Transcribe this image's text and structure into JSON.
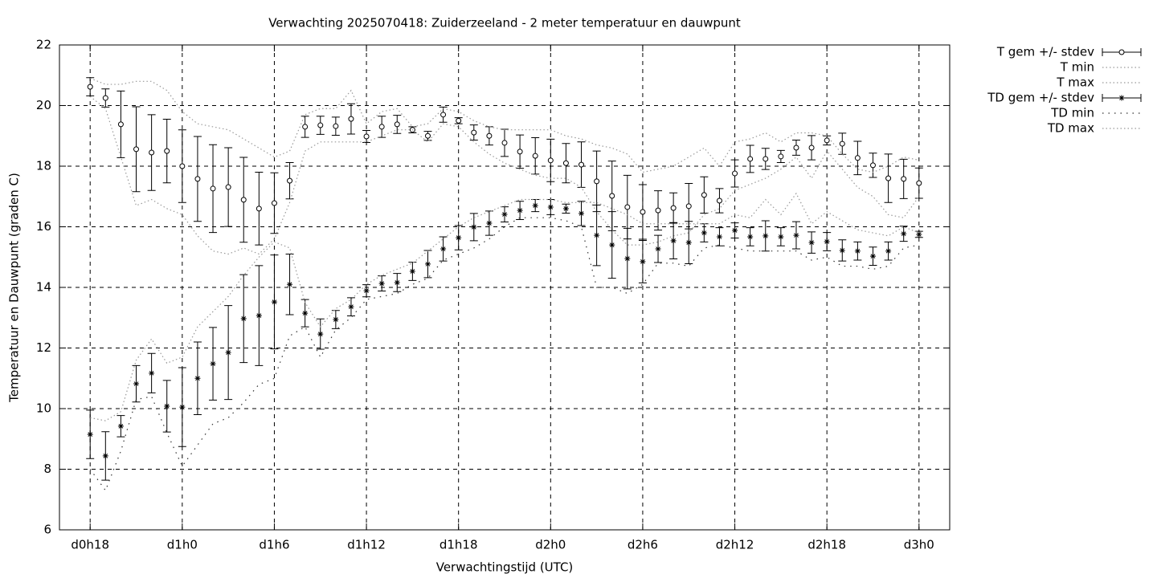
{
  "chart_data": {
    "type": "errorbar",
    "title": "Verwachting 2025070418: Zuiderzeeland - 2 meter temperatuur en dauwpunt",
    "x_label": "Verwachtingstijd (UTC)",
    "y_label": "Temperatuur en Dauwpunt (graden C)",
    "x": [
      18,
      19,
      20,
      21,
      22,
      23,
      24,
      25,
      26,
      27,
      28,
      29,
      30,
      31,
      32,
      33,
      34,
      35,
      36,
      37,
      38,
      39,
      40,
      41,
      42,
      43,
      44,
      45,
      46,
      47,
      48,
      49,
      50,
      51,
      52,
      53,
      54,
      55,
      56,
      57,
      58,
      59,
      60,
      61,
      62,
      63,
      64,
      65,
      66,
      67,
      68,
      69,
      70,
      71,
      72
    ],
    "xlim": [
      16,
      74
    ],
    "xticks": [
      {
        "value": 18,
        "label": "d0h18"
      },
      {
        "value": 24,
        "label": "d1h0"
      },
      {
        "value": 30,
        "label": "d1h6"
      },
      {
        "value": 36,
        "label": "d1h12"
      },
      {
        "value": 42,
        "label": "d1h18"
      },
      {
        "value": 48,
        "label": "d2h0"
      },
      {
        "value": 54,
        "label": "d2h6"
      },
      {
        "value": 60,
        "label": "d2h12"
      },
      {
        "value": 66,
        "label": "d2h18"
      },
      {
        "value": 72,
        "label": "d3h0"
      }
    ],
    "ylim": [
      6,
      22
    ],
    "yticks": [
      6,
      8,
      10,
      12,
      14,
      16,
      18,
      20,
      22
    ],
    "grid": true,
    "legend": "outside-right-top",
    "series": [
      {
        "name": "T gem +/- stdev",
        "color": "#000000",
        "marker": "circle",
        "values": [
          20.62,
          20.25,
          19.38,
          18.56,
          18.45,
          18.5,
          18.0,
          17.58,
          17.26,
          17.31,
          16.89,
          16.6,
          16.78,
          17.52,
          19.3,
          19.35,
          19.32,
          19.56,
          18.98,
          19.3,
          19.38,
          19.2,
          19.0,
          19.7,
          19.5,
          19.11,
          19.0,
          18.77,
          18.48,
          18.34,
          18.19,
          18.1,
          18.05,
          17.5,
          17.02,
          16.65,
          16.49,
          16.54,
          16.62,
          16.68,
          17.05,
          16.86,
          17.76,
          18.24,
          18.24,
          18.32,
          18.61,
          18.61,
          18.85,
          18.74,
          18.27,
          18.03,
          17.6,
          17.58,
          17.44
        ],
        "errors": [
          0.3,
          0.3,
          1.1,
          1.4,
          1.25,
          1.05,
          1.2,
          1.4,
          1.45,
          1.3,
          1.4,
          1.2,
          1.0,
          0.6,
          0.35,
          0.3,
          0.3,
          0.5,
          0.2,
          0.35,
          0.3,
          0.1,
          0.15,
          0.25,
          0.1,
          0.25,
          0.3,
          0.45,
          0.55,
          0.6,
          0.7,
          0.65,
          0.75,
          1.0,
          1.15,
          1.05,
          0.9,
          0.65,
          0.5,
          0.75,
          0.6,
          0.4,
          0.45,
          0.45,
          0.35,
          0.2,
          0.25,
          0.4,
          0.15,
          0.35,
          0.55,
          0.4,
          0.8,
          0.65,
          0.5
        ]
      },
      {
        "name": "T min",
        "color": "#999999",
        "line": "dotted",
        "values": [
          20.3,
          19.9,
          18.3,
          16.7,
          16.9,
          16.6,
          16.4,
          15.7,
          15.2,
          15.1,
          15.3,
          15.1,
          15.6,
          16.8,
          18.5,
          18.8,
          18.8,
          18.8,
          18.8,
          19.0,
          19.2,
          19.2,
          18.8,
          19.4,
          19.3,
          18.8,
          18.4,
          18.1,
          17.9,
          17.7,
          17.6,
          17.6,
          17.3,
          16.5,
          15.9,
          15.4,
          15.4,
          15.5,
          15.7,
          15.8,
          16.4,
          16.6,
          17.2,
          17.4,
          17.6,
          17.9,
          18.3,
          17.6,
          18.5,
          17.9,
          17.3,
          17.0,
          16.4,
          16.3,
          17.0
        ]
      },
      {
        "name": "T max",
        "color": "#999999",
        "line": "dotted",
        "values": [
          20.9,
          20.7,
          20.7,
          20.8,
          20.8,
          20.5,
          19.8,
          19.4,
          19.3,
          19.2,
          18.9,
          18.6,
          18.3,
          18.5,
          19.7,
          19.9,
          19.9,
          20.5,
          19.4,
          19.8,
          19.9,
          19.3,
          19.4,
          19.9,
          19.8,
          19.5,
          19.3,
          19.2,
          19.2,
          19.2,
          19.2,
          19.0,
          18.9,
          18.7,
          18.6,
          18.4,
          17.8,
          17.9,
          18.0,
          18.3,
          18.6,
          18.0,
          18.8,
          18.9,
          19.1,
          18.8,
          19.1,
          19.1,
          19.0,
          18.4,
          17.9,
          17.8,
          18.0,
          18.3,
          18.2
        ]
      },
      {
        "name": "TD gem +/- stdev",
        "color": "#000000",
        "marker": "star",
        "values": [
          9.15,
          8.44,
          9.42,
          10.82,
          11.17,
          10.08,
          10.05,
          11.0,
          11.48,
          11.85,
          12.97,
          13.07,
          13.52,
          14.1,
          13.15,
          12.46,
          12.94,
          13.36,
          13.89,
          14.13,
          14.16,
          14.53,
          14.77,
          15.27,
          15.64,
          15.99,
          16.12,
          16.41,
          16.54,
          16.7,
          16.65,
          16.6,
          16.44,
          15.72,
          15.4,
          14.95,
          14.85,
          15.27,
          15.54,
          15.48,
          15.8,
          15.67,
          15.88,
          15.67,
          15.7,
          15.67,
          15.72,
          15.48,
          15.51,
          15.22,
          15.2,
          15.03,
          15.2,
          15.77,
          15.75
        ],
        "errors": [
          0.8,
          0.8,
          0.35,
          0.6,
          0.65,
          0.85,
          1.3,
          1.2,
          1.2,
          1.55,
          1.45,
          1.65,
          1.55,
          1.0,
          0.45,
          0.5,
          0.3,
          0.3,
          0.2,
          0.25,
          0.3,
          0.3,
          0.45,
          0.4,
          0.4,
          0.45,
          0.4,
          0.25,
          0.3,
          0.2,
          0.25,
          0.15,
          0.4,
          1.0,
          1.1,
          1.0,
          0.7,
          0.45,
          0.6,
          0.7,
          0.3,
          0.3,
          0.25,
          0.3,
          0.5,
          0.3,
          0.45,
          0.35,
          0.3,
          0.35,
          0.3,
          0.3,
          0.3,
          0.25,
          0.1
        ]
      },
      {
        "name": "TD min",
        "color": "#333333",
        "line": "sparse-dotted",
        "values": [
          8.0,
          7.3,
          8.6,
          10.3,
          10.4,
          9.2,
          8.1,
          8.8,
          9.5,
          9.7,
          10.2,
          10.8,
          11.0,
          12.4,
          12.7,
          11.7,
          12.6,
          13.0,
          13.6,
          13.7,
          13.8,
          14.1,
          14.3,
          14.9,
          15.1,
          15.3,
          15.6,
          16.0,
          16.3,
          16.3,
          16.3,
          16.2,
          16.0,
          14.0,
          14.0,
          13.8,
          14.1,
          14.8,
          14.8,
          14.7,
          15.3,
          15.4,
          15.3,
          15.2,
          15.2,
          15.2,
          15.2,
          14.9,
          15.0,
          14.7,
          14.7,
          14.6,
          14.7,
          15.3,
          15.4
        ]
      },
      {
        "name": "TD max",
        "color": "#999999",
        "line": "dotted",
        "values": [
          9.7,
          9.6,
          9.9,
          11.6,
          12.3,
          11.5,
          11.7,
          12.7,
          13.2,
          13.7,
          14.4,
          15.0,
          15.5,
          15.3,
          13.5,
          12.7,
          13.3,
          13.6,
          14.1,
          14.4,
          14.6,
          14.8,
          15.2,
          15.6,
          16.0,
          16.3,
          16.5,
          16.7,
          16.9,
          16.9,
          16.9,
          16.8,
          16.8,
          16.8,
          16.6,
          16.4,
          16.1,
          16.1,
          16.1,
          16.1,
          16.1,
          16.1,
          16.4,
          16.3,
          16.9,
          16.4,
          17.1,
          16.1,
          16.5,
          16.2,
          15.9,
          15.8,
          15.7,
          16.0,
          15.8
        ]
      }
    ]
  }
}
